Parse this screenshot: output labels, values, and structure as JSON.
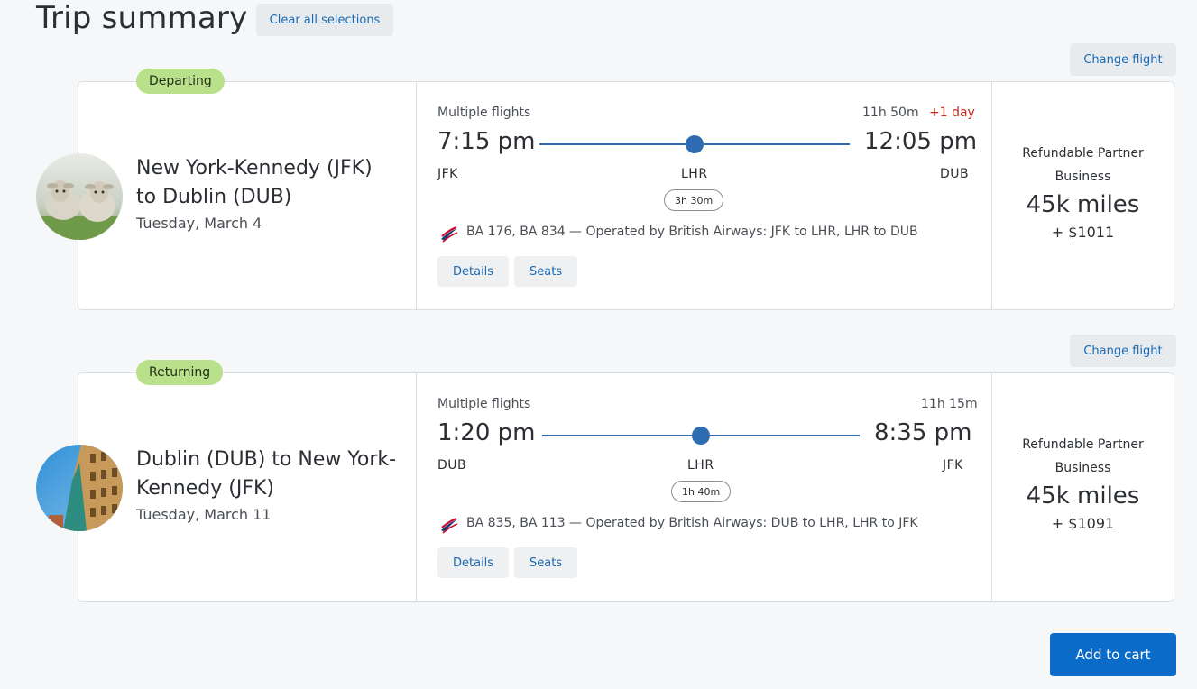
{
  "header": {
    "title": "Trip summary",
    "clear_label": "Clear all selections"
  },
  "departing": {
    "change_label": "Change flight",
    "badge": "Departing",
    "route": "New York-Kennedy (JFK) to Dublin (DUB)",
    "date": "Tuesday, March 4",
    "multi": "Multiple flights",
    "duration": "11h 50m",
    "plus_day": "+1 day",
    "depart_time": "7:15 pm",
    "arrive_time": "12:05 pm",
    "origin": "JFK",
    "stop": "LHR",
    "destination": "DUB",
    "layover": "3h 30m",
    "operated": "BA 176, BA 834 — Operated by British Airways: JFK to LHR, LHR to DUB",
    "details_label": "Details",
    "seats_label": "Seats",
    "fare_line1": "Refundable Partner",
    "fare_line2": "Business",
    "miles": "45k miles",
    "cash": "+ $1011",
    "image": "sheep-photo"
  },
  "returning": {
    "change_label": "Change flight",
    "badge": "Returning",
    "route": "Dublin (DUB) to New York-Kennedy (JFK)",
    "date": "Tuesday, March 11",
    "multi": "Multiple flights",
    "duration": "11h 15m",
    "depart_time": "1:20 pm",
    "arrive_time": "8:35 pm",
    "origin": "DUB",
    "stop": "LHR",
    "destination": "JFK",
    "layover": "1h 40m",
    "operated": "BA 835, BA 113 — Operated by British Airways: DUB to LHR, LHR to JFK",
    "details_label": "Details",
    "seats_label": "Seats",
    "fare_line1": "Refundable Partner",
    "fare_line2": "Business",
    "miles": "45k miles",
    "cash": "+ $1091",
    "image": "dublin-building-photo"
  },
  "cart": {
    "label": "Add to cart"
  },
  "colors": {
    "accent": "#0a6bc9",
    "link": "#1a6ab3",
    "badge": "#b9e08a",
    "plus_day": "#c42a1d",
    "track": "#2e6bb0"
  }
}
